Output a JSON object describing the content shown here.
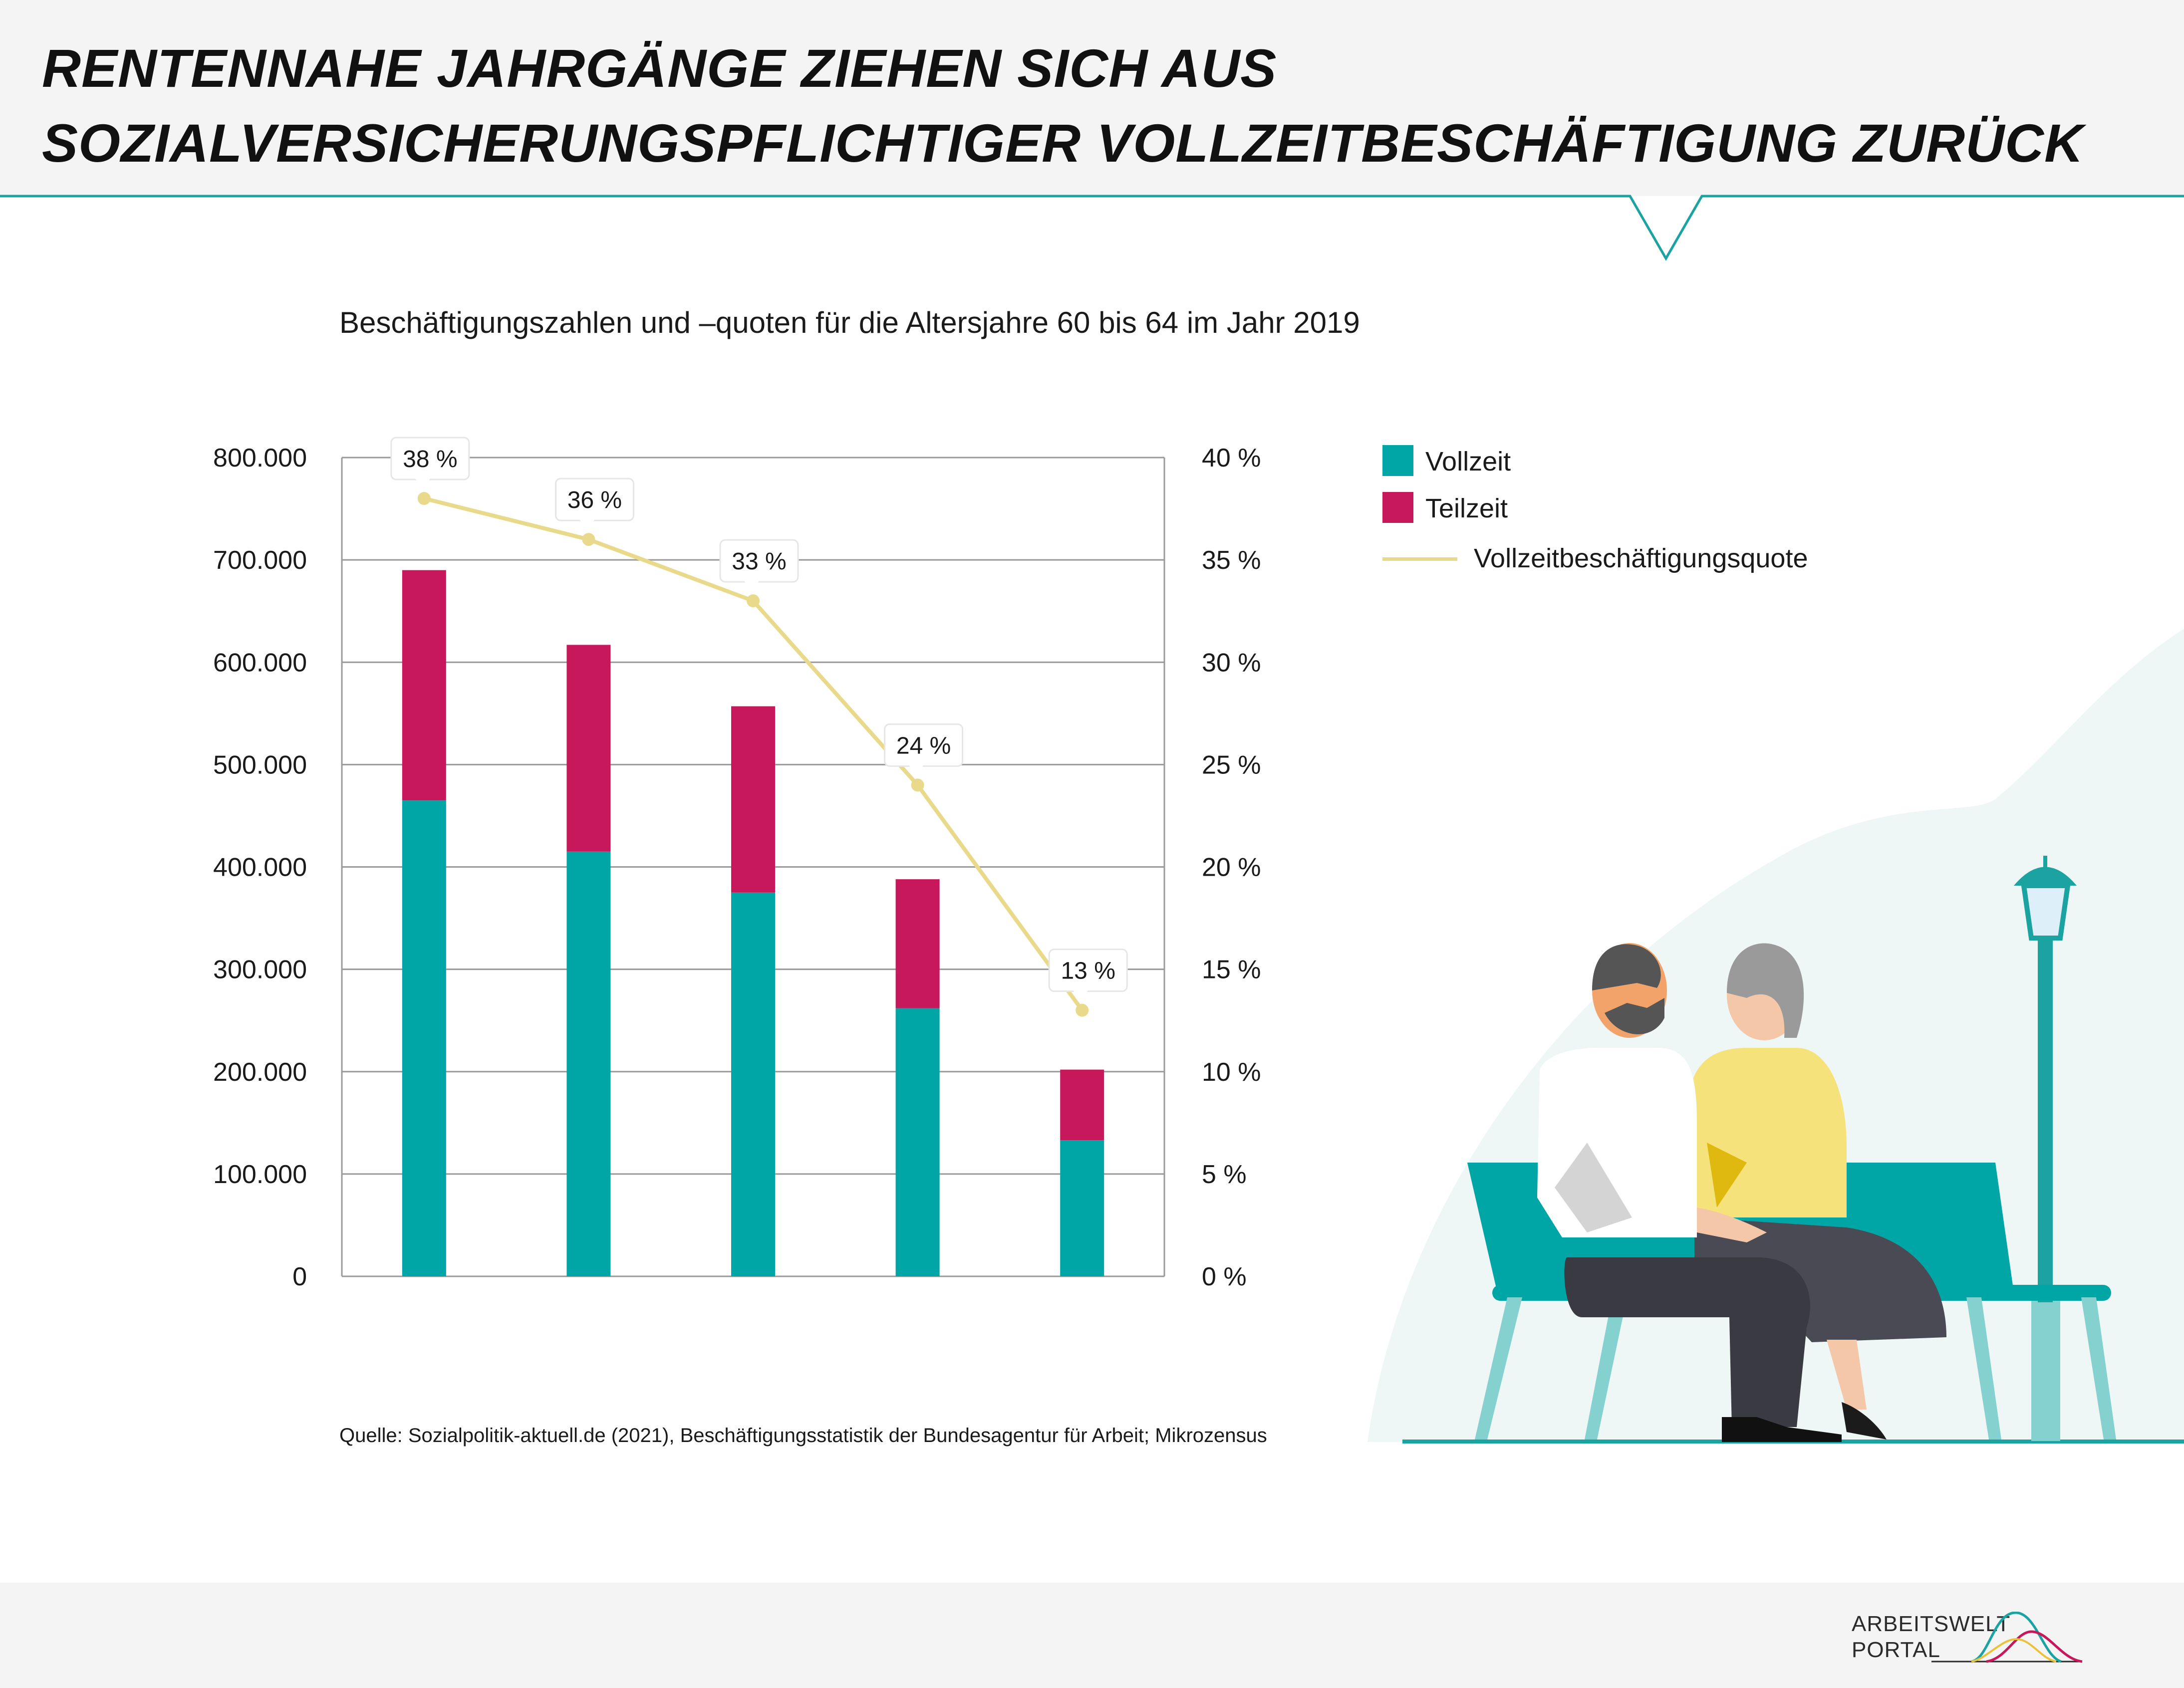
{
  "header": {
    "title": "RENTENNAHE JAHRGÄNGE ZIEHEN SICH AUS SOZIALVERSICHERUNGSPFLICHTIGER VOLLZEITBESCHÄFTIGUNG ZURÜCK"
  },
  "subtitle": "Beschäftigungszahlen und –quoten für die Altersjahre 60 bis 64 im Jahr 2019",
  "source": "Quelle: Sozialpolitik-aktuell.de (2021), Beschäftigungsstatistik der Bundesagentur für Arbeit; Mikrozensus",
  "logo": {
    "line1": "ARBEITSWELT",
    "line2": "PORTAL"
  },
  "colors": {
    "vollzeit": "#00a5a5",
    "teilzeit": "#c8185c",
    "quote": "#e9d98b",
    "accent": "#1aa3a0"
  },
  "chart_data": {
    "type": "bar",
    "stacked": true,
    "categories": [
      "",
      "",
      "",
      "",
      ""
    ],
    "series": [
      {
        "name": "Vollzeit",
        "values": [
          465000,
          415000,
          375000,
          262000,
          133000
        ]
      },
      {
        "name": "Teilzeit",
        "values": [
          225000,
          202000,
          182000,
          126000,
          69000
        ]
      }
    ],
    "line_series": {
      "name": "Vollzeitbeschäftigungsquote",
      "values": [
        38,
        36,
        33,
        24,
        13
      ],
      "labels": [
        "38 %",
        "36 %",
        "33 %",
        "24 %",
        "13 %"
      ]
    },
    "ylim": [
      0,
      800000
    ],
    "y_ticks": [
      "0",
      "100.000",
      "200.000",
      "300.000",
      "400.000",
      "500.000",
      "600.000",
      "700.000",
      "800.000"
    ],
    "y2lim": [
      0,
      40
    ],
    "y2_ticks": [
      "0 %",
      "5 %",
      "10 %",
      "15 %",
      "20 %",
      "25 %",
      "30 %",
      "35 %",
      "40 %"
    ],
    "grid": true,
    "legend_position": "right"
  }
}
